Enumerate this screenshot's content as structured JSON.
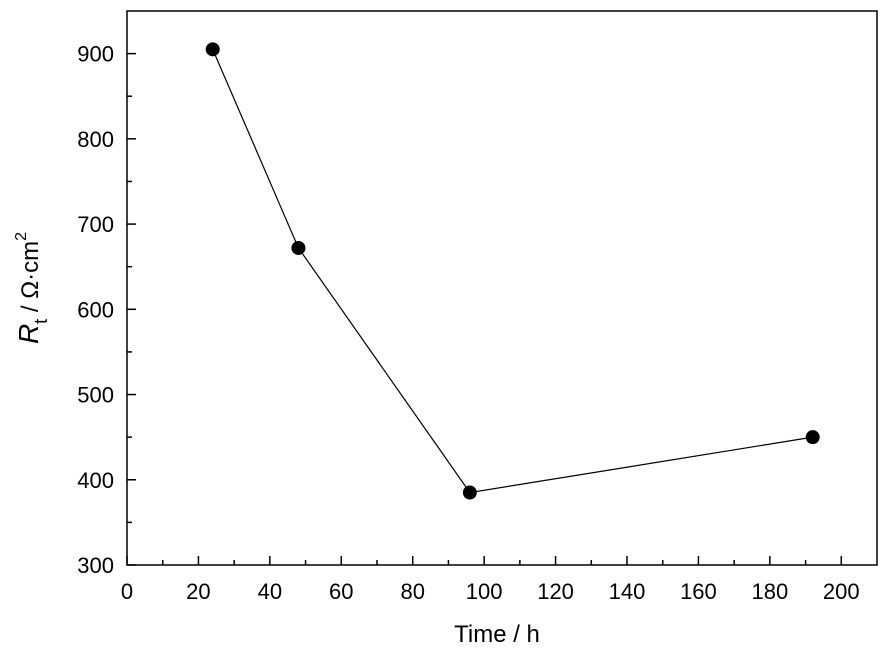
{
  "chart_data": {
    "type": "line",
    "title": "",
    "xlabel": "Time / h",
    "ylabel": {
      "main": "R",
      "sub": "t",
      "unit": " / Ω·cm",
      "sup": "2"
    },
    "xlim": [
      0,
      210
    ],
    "ylim": [
      300,
      950
    ],
    "x_ticks": [
      0,
      20,
      40,
      60,
      80,
      100,
      120,
      140,
      160,
      180,
      200
    ],
    "x_tick_labels": [
      "0",
      "20",
      "40",
      "60",
      "80",
      "100",
      "120",
      "140",
      "160",
      "180",
      "200"
    ],
    "x_minor_step": 10,
    "y_ticks": [
      300,
      400,
      500,
      600,
      700,
      800,
      900
    ],
    "y_tick_labels": [
      "300",
      "400",
      "500",
      "600",
      "700",
      "800",
      "900"
    ],
    "y_minor_step": 50,
    "grid": false,
    "series": [
      {
        "x": [
          24,
          48,
          96,
          192
        ],
        "y": [
          905,
          672,
          385,
          450
        ],
        "marker": "circle",
        "color": "#000000"
      }
    ]
  }
}
